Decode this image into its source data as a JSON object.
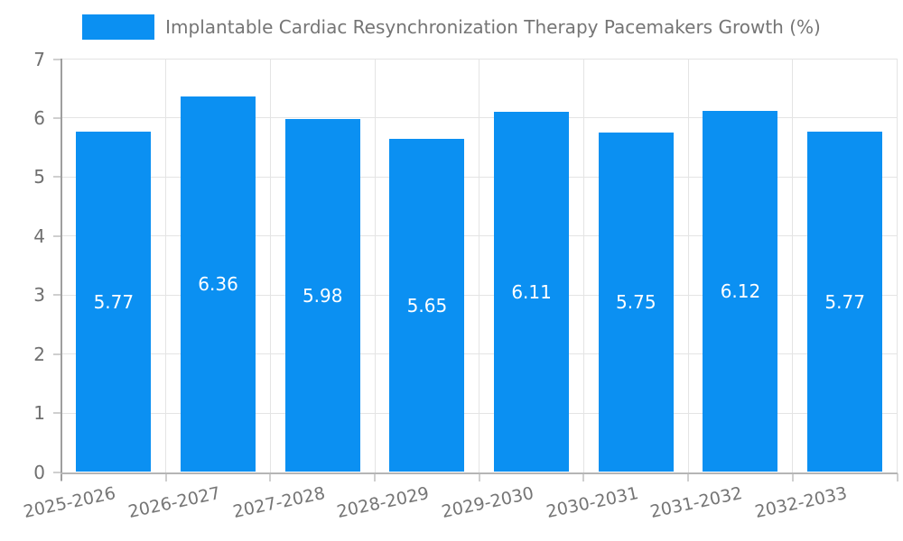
{
  "chart_data": {
    "type": "bar",
    "title": "Implantable Cardiac Resynchronization Therapy Pacemakers Growth (%)",
    "categories": [
      "2025-2026",
      "2026-2027",
      "2027-2028",
      "2028-2029",
      "2029-2030",
      "2030-2031",
      "2031-2032",
      "2032-2033"
    ],
    "series": [
      {
        "name": "Implantable Cardiac Resynchronization Therapy Pacemakers Growth (%)",
        "values": [
          5.77,
          6.36,
          5.98,
          5.65,
          6.11,
          5.75,
          6.12,
          5.77
        ],
        "color": "#0b90f2"
      }
    ],
    "value_labels": [
      "5.77",
      "6.36",
      "5.98",
      "5.65",
      "6.11",
      "5.75",
      "6.12",
      "5.77"
    ],
    "xlabel": "",
    "ylabel": "",
    "ylim": [
      0,
      7
    ],
    "yticks": [
      0,
      1,
      2,
      3,
      4,
      5,
      6,
      7
    ],
    "grid": true,
    "legend_position": "top",
    "colors": {
      "bar": "#0b90f2",
      "value_label": "#ffffff",
      "axis_text": "#757575",
      "grid_line": "#e4e4e4",
      "background": "#ffffff"
    }
  }
}
